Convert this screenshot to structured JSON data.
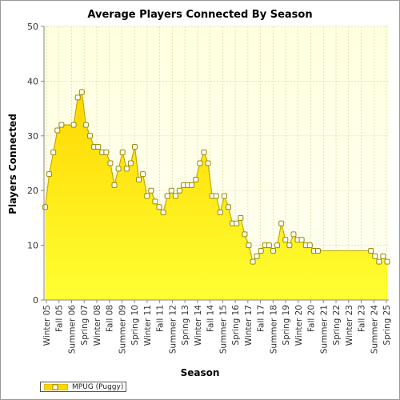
{
  "colors": {
    "area_top": "#ffd700",
    "area_bottom": "#ffff33",
    "line": "#c8a800",
    "marker_fill": "#ffffff",
    "marker_stroke": "#9a8a00",
    "plot_bg_top": "#ffffe0",
    "plot_bg_bottom": "#fffff2",
    "grid": "#d8d8a0"
  },
  "chart_data": {
    "type": "area",
    "title": "Average Players Connected By Season",
    "xlabel": "Season",
    "ylabel": "Players Connected",
    "ylim": [
      0,
      50
    ],
    "yticks": [
      0,
      10,
      20,
      30,
      40,
      50
    ],
    "grid": true,
    "legend_position": "bottom-left",
    "tick_labels": [
      "Winter 05",
      "Fall 05",
      "Summer 06",
      "Spring 07",
      "Winter 08",
      "Fall 08",
      "Summer 09",
      "Spring 10",
      "Winter 11",
      "Fall 11",
      "Summer 12",
      "Spring 13",
      "Winter 14",
      "Fall 14",
      "Summer 15",
      "Spring 16",
      "Winter 17",
      "Fall 17",
      "Summer 18",
      "Spring 19",
      "Winter 20",
      "Fall 20",
      "Summer 21",
      "Spring 22",
      "Winter 23",
      "Fall 23",
      "Summer 24",
      "Spring 25"
    ],
    "series": [
      {
        "name": "MPUG (Puggy)",
        "values": [
          17,
          23,
          27,
          31,
          32,
          32,
          32,
          32,
          37,
          38,
          32,
          30,
          28,
          28,
          27,
          27,
          25,
          21,
          24,
          27,
          24,
          25,
          28,
          22,
          23,
          19,
          20,
          18,
          17,
          16,
          19,
          20,
          19,
          20,
          21,
          21,
          21,
          22,
          25,
          27,
          25,
          19,
          19,
          16,
          19,
          17,
          14,
          14,
          15,
          12,
          10,
          7,
          8,
          9,
          10,
          10,
          9,
          10,
          14,
          11,
          10,
          12,
          11,
          11,
          10,
          10,
          9,
          9,
          9,
          9,
          9,
          9,
          9,
          9,
          9,
          9,
          9,
          9,
          9,
          9,
          9,
          8,
          7,
          8,
          7
        ],
        "markers": [
          true,
          true,
          true,
          true,
          true,
          false,
          false,
          true,
          true,
          true,
          true,
          true,
          true,
          true,
          true,
          true,
          true,
          true,
          true,
          true,
          true,
          true,
          true,
          true,
          true,
          true,
          true,
          true,
          true,
          true,
          true,
          true,
          true,
          true,
          true,
          true,
          true,
          true,
          true,
          true,
          true,
          true,
          true,
          true,
          true,
          true,
          true,
          true,
          true,
          true,
          true,
          true,
          true,
          true,
          true,
          true,
          true,
          true,
          true,
          true,
          true,
          true,
          true,
          true,
          true,
          true,
          true,
          true,
          false,
          false,
          false,
          false,
          false,
          false,
          false,
          false,
          false,
          false,
          false,
          false,
          true,
          true,
          true,
          true,
          true
        ]
      }
    ]
  }
}
